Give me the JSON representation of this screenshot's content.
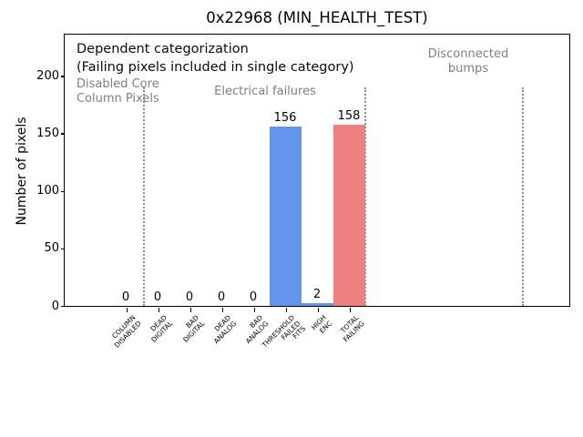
{
  "chart_data": {
    "type": "bar",
    "title": "0x22968 (MIN_HEALTH_TEST)",
    "xlabel": "",
    "ylabel": "Number of pixels",
    "ylim": [
      0,
      236
    ],
    "yticks": [
      0,
      50,
      100,
      150,
      200
    ],
    "grid": false,
    "legend": null,
    "categories": [
      "COLUMN\nDISABLED",
      "DEAD\nDIGITAL",
      "BAD\nDIGITAL",
      "DEAD\nANALOG",
      "BAD\nANALOG",
      "THRESHOLD\nFAILED\nFITS",
      "HIGH\nENC",
      "TOTAL\nFAILING"
    ],
    "values": [
      0,
      0,
      0,
      0,
      0,
      156,
      2,
      158
    ],
    "bar_value_labels": [
      "0",
      "0",
      "0",
      "0",
      "0",
      "156",
      "2",
      "158"
    ],
    "bar_colors": [
      "#6495ED",
      "#6495ED",
      "#6495ED",
      "#6495ED",
      "#6495ED",
      "#6495ED",
      "#6495ED",
      "#F08080"
    ],
    "annotations": {
      "headline_line1": "Dependent categorization",
      "headline_line2": "(Failing pixels included in single category)",
      "section_labels": [
        "Disabled Core\nColumn Pixels",
        "Electrical failures",
        "Disconnected\nbumps"
      ]
    }
  },
  "colors": {
    "bar_blue": "#6495ED",
    "bar_red": "#F08080",
    "annotation_gray": "#7f7f7f",
    "separator_gray": "#8c8c8c",
    "axis_black": "#000000"
  }
}
